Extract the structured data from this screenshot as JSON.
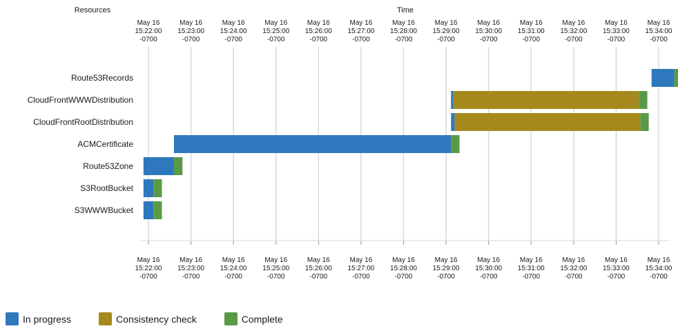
{
  "chart_data": {
    "type": "gantt",
    "headers": {
      "resources": "Resources",
      "time": "Time"
    },
    "ticks": [
      [
        "May 16",
        "15:22:00",
        "-0700"
      ],
      [
        "May 16",
        "15:23:00",
        "-0700"
      ],
      [
        "May 16",
        "15:24:00",
        "-0700"
      ],
      [
        "May 16",
        "15:25:00",
        "-0700"
      ],
      [
        "May 16",
        "15:26:00",
        "-0700"
      ],
      [
        "May 16",
        "15:27:00",
        "-0700"
      ],
      [
        "May 16",
        "15:28:00",
        "-0700"
      ],
      [
        "May 16",
        "15:29:00",
        "-0700"
      ],
      [
        "May 16",
        "15:30:00",
        "-0700"
      ],
      [
        "May 16",
        "15:31:00",
        "-0700"
      ],
      [
        "May 16",
        "15:32:00",
        "-0700"
      ],
      [
        "May 16",
        "15:33:00",
        "-0700"
      ],
      [
        "May 16",
        "15:34:00",
        "-0700"
      ]
    ],
    "xlim": [
      "15:22:00",
      "15:34:00"
    ],
    "resources": [
      {
        "name": "Route53Records",
        "segments": [
          {
            "status": "in_progress",
            "start": "15:33:50",
            "end": "15:34:22"
          },
          {
            "status": "complete",
            "start": "15:34:22",
            "end": "15:34:34"
          }
        ]
      },
      {
        "name": "CloudFrontWWWDistribution",
        "segments": [
          {
            "status": "in_progress",
            "start": "15:29:07",
            "end": "15:29:10"
          },
          {
            "status": "consistency_check",
            "start": "15:29:10",
            "end": "15:33:32"
          },
          {
            "status": "complete",
            "start": "15:33:32",
            "end": "15:33:44"
          }
        ]
      },
      {
        "name": "CloudFrontRootDistribution",
        "segments": [
          {
            "status": "in_progress",
            "start": "15:29:07",
            "end": "15:29:12"
          },
          {
            "status": "consistency_check",
            "start": "15:29:12",
            "end": "15:33:34"
          },
          {
            "status": "complete",
            "start": "15:33:34",
            "end": "15:33:46"
          }
        ]
      },
      {
        "name": "ACMCertificate",
        "segments": [
          {
            "status": "in_progress",
            "start": "15:22:36",
            "end": "15:29:07"
          },
          {
            "status": "complete",
            "start": "15:29:07",
            "end": "15:29:19"
          }
        ]
      },
      {
        "name": "Route53Zone",
        "segments": [
          {
            "status": "in_progress",
            "start": "15:21:53",
            "end": "15:22:36"
          },
          {
            "status": "complete",
            "start": "15:22:36",
            "end": "15:22:48"
          }
        ]
      },
      {
        "name": "S3RootBucket",
        "segments": [
          {
            "status": "in_progress",
            "start": "15:21:53",
            "end": "15:22:07"
          },
          {
            "status": "complete",
            "start": "15:22:07",
            "end": "15:22:19"
          }
        ]
      },
      {
        "name": "S3WWWBucket",
        "segments": [
          {
            "status": "in_progress",
            "start": "15:21:53",
            "end": "15:22:07"
          },
          {
            "status": "complete",
            "start": "15:22:07",
            "end": "15:22:19"
          }
        ]
      }
    ],
    "legend": [
      {
        "key": "in_progress",
        "label": "In progress",
        "color": "#2e78bd"
      },
      {
        "key": "consistency_check",
        "label": "Consistency check",
        "color": "#a6891d"
      },
      {
        "key": "complete",
        "label": "Complete",
        "color": "#5a9a47"
      }
    ],
    "grid": true,
    "legend_placement": "bottom-left"
  }
}
